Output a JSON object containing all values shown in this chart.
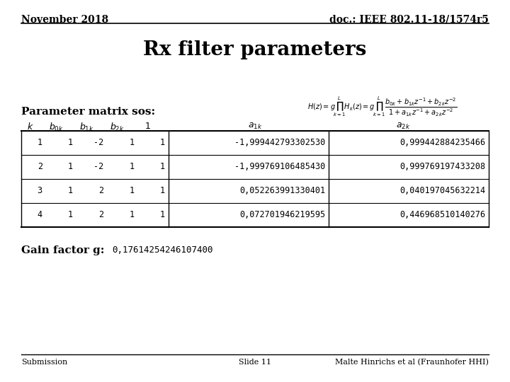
{
  "header_left": "November 2018",
  "header_right": "doc.: IEEE 802.11-18/1574r5",
  "title": "Rx filter parameters",
  "subtitle": "Parameter matrix sos:",
  "col_headers_text": [
    "k",
    "b0k",
    "b1k",
    "b2k",
    "1",
    "a1k",
    "a2k"
  ],
  "table_data": [
    [
      "1",
      "1",
      "-2",
      "1",
      "1",
      "-1,999442793302530",
      "0,999442884235466"
    ],
    [
      "2",
      "1",
      "-2",
      "1",
      "1",
      "-1,999769106485430",
      "0,999769197433208"
    ],
    [
      "3",
      "1",
      "2",
      "1",
      "1",
      "0,052263991330401",
      "0,040197045632214"
    ],
    [
      "4",
      "1",
      "2",
      "1",
      "1",
      "0,072701946219595",
      "0,446968510140276"
    ]
  ],
  "gain_label": "Gain factor g:",
  "gain_value": "0,17614254246107400",
  "footer_left": "Submission",
  "footer_center": "Slide 11",
  "footer_right": "Malte Hinrichs et al (Fraunhofer HHI)",
  "bg_color": "#ffffff",
  "text_color": "#000000"
}
